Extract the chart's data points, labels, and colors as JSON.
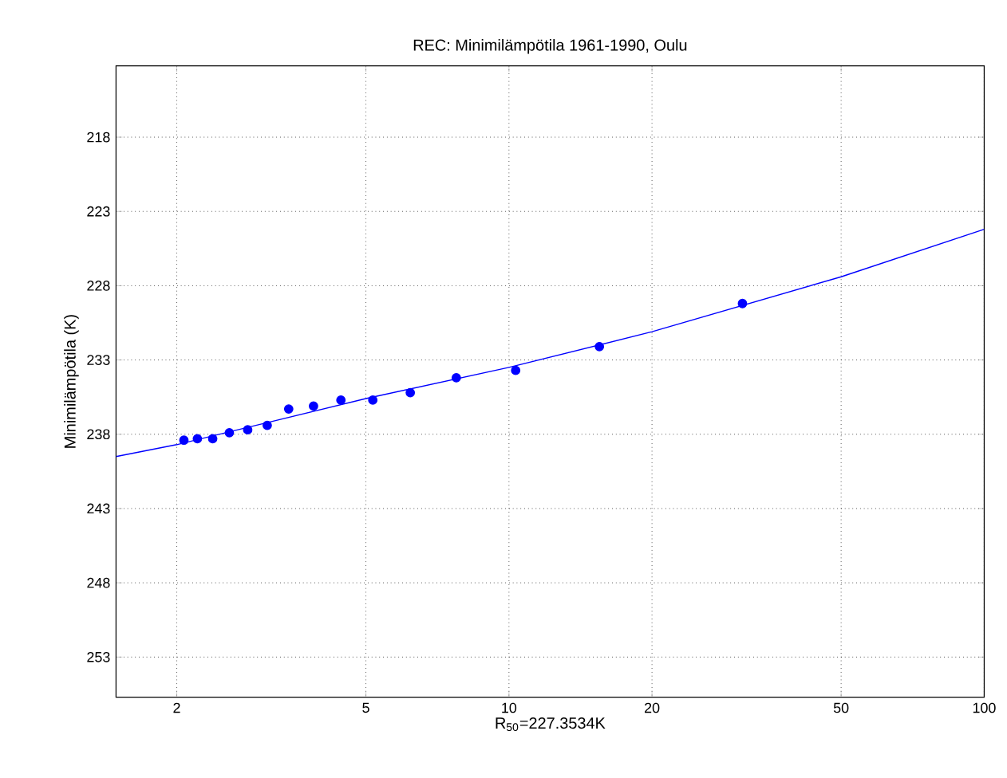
{
  "chart_data": {
    "type": "scatter",
    "title": "REC: Minimilämpötila 1961-1990, Oulu",
    "xlabel": "R$_{50}$=227.3534K",
    "ylabel": "Minimilämpötila (K)",
    "xlim": [
      1.49,
      100
    ],
    "xticks": [
      2,
      5,
      10,
      20,
      50,
      100
    ],
    "ylim": [
      255.7,
      213.2
    ],
    "yticks": [
      218,
      223,
      228,
      233,
      238,
      243,
      248,
      253
    ],
    "grid": true,
    "log": "x",
    "series": [
      {
        "marker": "circle",
        "color": "#0000ff",
        "x": [
          2.07,
          2.21,
          2.38,
          2.58,
          2.82,
          3.1,
          3.44,
          3.88,
          4.43,
          5.17,
          6.2,
          7.75,
          10.33,
          15.5,
          31
        ],
        "values": [
          238.4,
          238.3,
          238.3,
          237.9,
          237.7,
          237.4,
          236.3,
          236.1,
          235.7,
          235.7,
          235.2,
          234.2,
          233.7,
          232.1,
          229.2
        ]
      },
      {
        "type": "line",
        "marker": "none",
        "color": "#0000ff",
        "x": [
          1.49,
          2,
          5,
          10,
          20,
          50,
          100
        ],
        "values": [
          239.5,
          238.7,
          235.6,
          233.5,
          231.1,
          227.4,
          224.2
        ]
      }
    ]
  }
}
